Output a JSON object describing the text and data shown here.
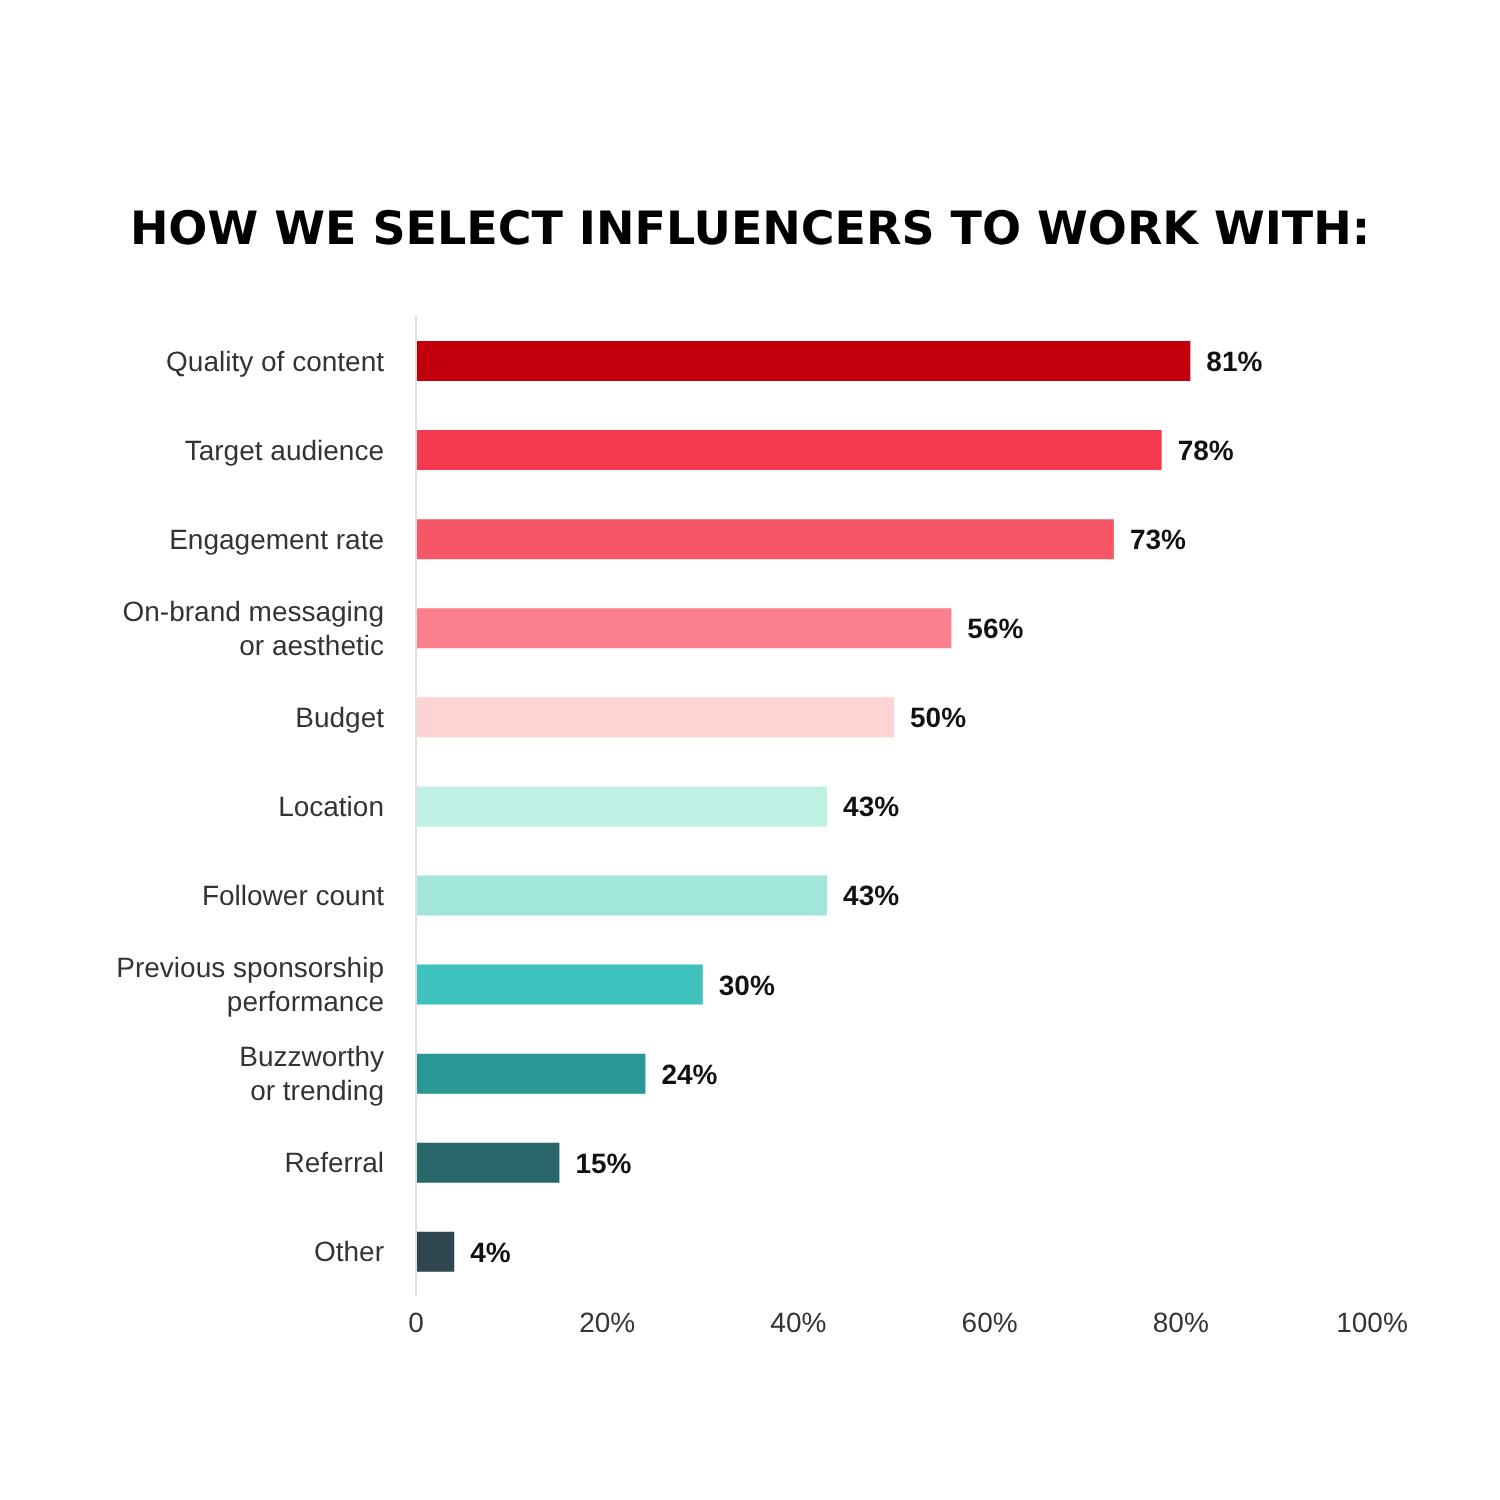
{
  "chart_data": {
    "type": "bar",
    "orientation": "horizontal",
    "title": "HOW WE SELECT INFLUENCERS TO WORK WITH:",
    "categories": [
      "Quality of content",
      "Target audience",
      "Engagement rate",
      "On-brand messaging\nor aesthetic",
      "Budget",
      "Location",
      "Follower count",
      "Previous sponsorship\nperformance",
      "Buzzworthy\nor trending",
      "Referral",
      "Other"
    ],
    "values": [
      81,
      78,
      73,
      56,
      50,
      43,
      43,
      30,
      24,
      15,
      4
    ],
    "colors": [
      "#c1000c",
      "#f53a50",
      "#f55767",
      "#fb7f8c",
      "#fdd3d3",
      "#bef0e3",
      "#a2e6da",
      "#3fc2bd",
      "#2a9796",
      "#2a676b",
      "#2f4650"
    ],
    "value_labels": [
      "81%",
      "78%",
      "73%",
      "56%",
      "50%",
      "43%",
      "43%",
      "30%",
      "24%",
      "15%",
      "4%"
    ],
    "xlim": [
      0,
      100
    ],
    "xticks": [
      0,
      {
        "value": 20,
        "label": "20%"
      },
      {
        "value": 40,
        "label": "40%"
      },
      {
        "value": 60,
        "label": "60%"
      },
      {
        "value": 80,
        "label": "80%"
      },
      {
        "value": 100,
        "label": "100%"
      }
    ],
    "grid": false,
    "legend": false
  }
}
